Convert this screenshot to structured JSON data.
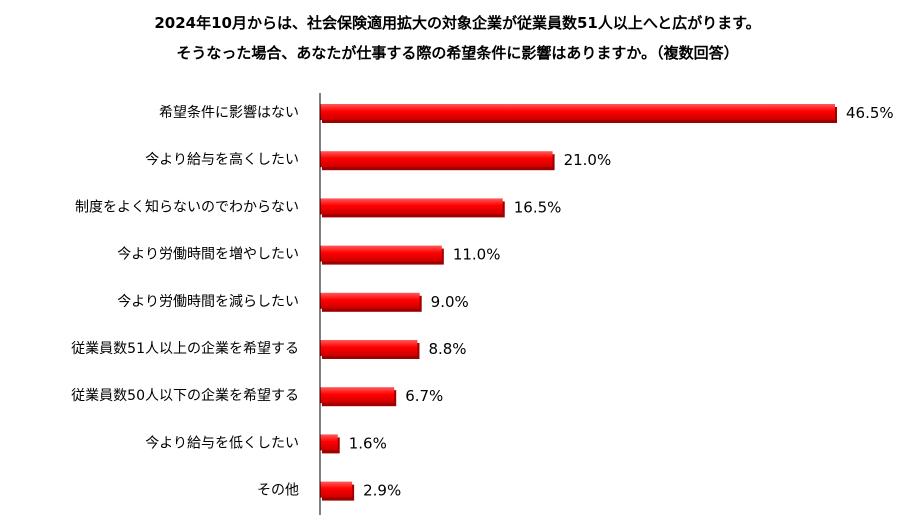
{
  "chart_data": {
    "type": "bar",
    "orientation": "horizontal",
    "title": "2024年10月からは、社会保険適用拡大の対象企業が従業員数51人以上へと広がります。",
    "subtitle": "そうなった場合、あなたが仕事する際の希望条件に影響はありますか。（複数回答）",
    "categories": [
      "希望条件に影響はない",
      "今より給与を高くしたい",
      "制度をよく知らないのでわからない",
      "今より労働時間を増やしたい",
      "今より労働時間を減らしたい",
      "従業員数51人以上の企業を希望する",
      "従業員数50人以下の企業を希望する",
      "今より給与を低くしたい",
      "その他"
    ],
    "values": [
      46.5,
      21.0,
      16.5,
      11.0,
      9.0,
      8.8,
      6.7,
      1.6,
      2.9
    ],
    "data_labels": [
      "46.5%",
      "21.0%",
      "16.5%",
      "11.0%",
      "9.0%",
      "8.8%",
      "6.7%",
      "1.6%",
      "2.9%"
    ],
    "xlim": [
      0,
      46.5
    ],
    "bar_color": "#ff0000",
    "bar_shadow_color": "#9e0000",
    "axis_color": "#000000",
    "grid": false,
    "legend": "none"
  }
}
